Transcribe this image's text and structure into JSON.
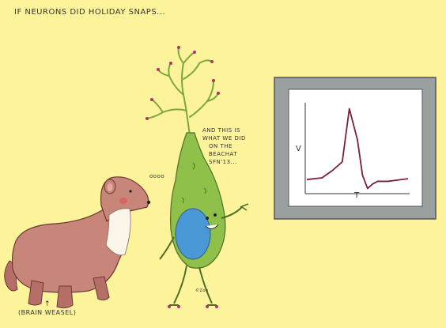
{
  "caption": "IF NEURONS DID HOLIDAY SNAPS...",
  "weasel_speech": "oooo",
  "neuron_speech": [
    "AND THIS IS",
    "WHAT WE DID",
    "ON THE",
    "BEACHAT",
    "SFN'13..."
  ],
  "weasel_label": "(BRAIN WEASEL)",
  "weasel_arrow": "↑",
  "signature": "©Zoe",
  "chart_data": {
    "type": "line",
    "title": "",
    "xlabel": "T",
    "ylabel": "V",
    "description": "action potential trace",
    "series": [
      {
        "color": "#7a1f3a",
        "x": [
          0,
          0.15,
          0.25,
          0.35,
          0.42,
          0.5,
          0.55,
          0.6,
          0.65,
          0.7,
          0.8,
          1.0
        ],
        "values": [
          0.15,
          0.17,
          0.25,
          0.35,
          0.95,
          0.6,
          0.2,
          0.05,
          0.1,
          0.13,
          0.13,
          0.16
        ]
      }
    ]
  },
  "colors": {
    "background": "#fdf39a",
    "weasel": "#c8857a",
    "neuron_body": "#8fc04a",
    "nucleus": "#4a97d6",
    "frame": "#9aa0a0",
    "trace": "#7a1f3a"
  }
}
